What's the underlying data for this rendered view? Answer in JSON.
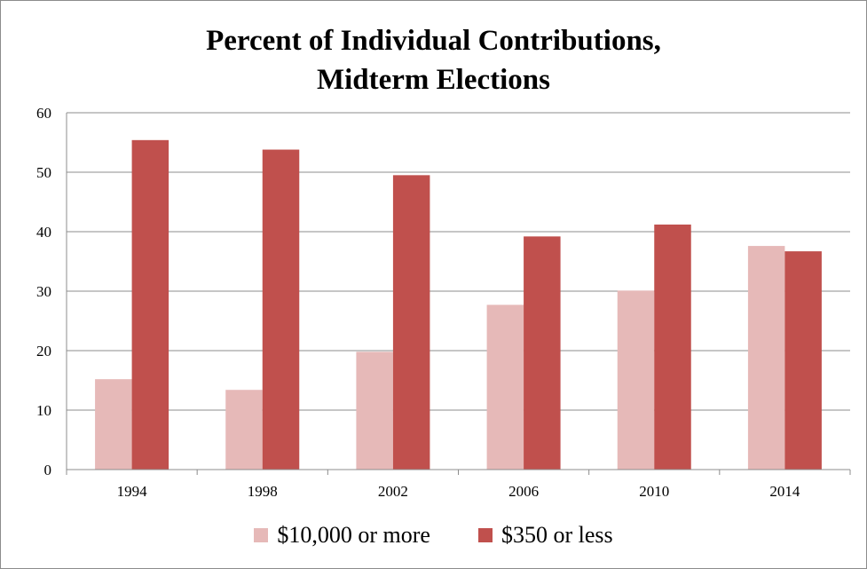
{
  "chart_data": {
    "type": "bar",
    "title_lines": [
      "Percent of  Individual Contributions,",
      "Midterm Elections"
    ],
    "categories": [
      "1994",
      "1998",
      "2002",
      "2006",
      "2010",
      "2014"
    ],
    "series": [
      {
        "name": "$10,000 or more",
        "color": "#e6b9b8",
        "values": [
          15.2,
          13.4,
          19.8,
          27.7,
          30.1,
          37.6
        ]
      },
      {
        "name": "$350 or less",
        "color": "#c0504d",
        "values": [
          55.4,
          53.8,
          49.5,
          39.2,
          41.2,
          36.7
        ]
      }
    ],
    "ylim": [
      0,
      60
    ],
    "yticks": [
      "0",
      "10",
      "20",
      "30",
      "40",
      "50",
      "60"
    ],
    "grid": true,
    "legend_position": "bottom"
  }
}
